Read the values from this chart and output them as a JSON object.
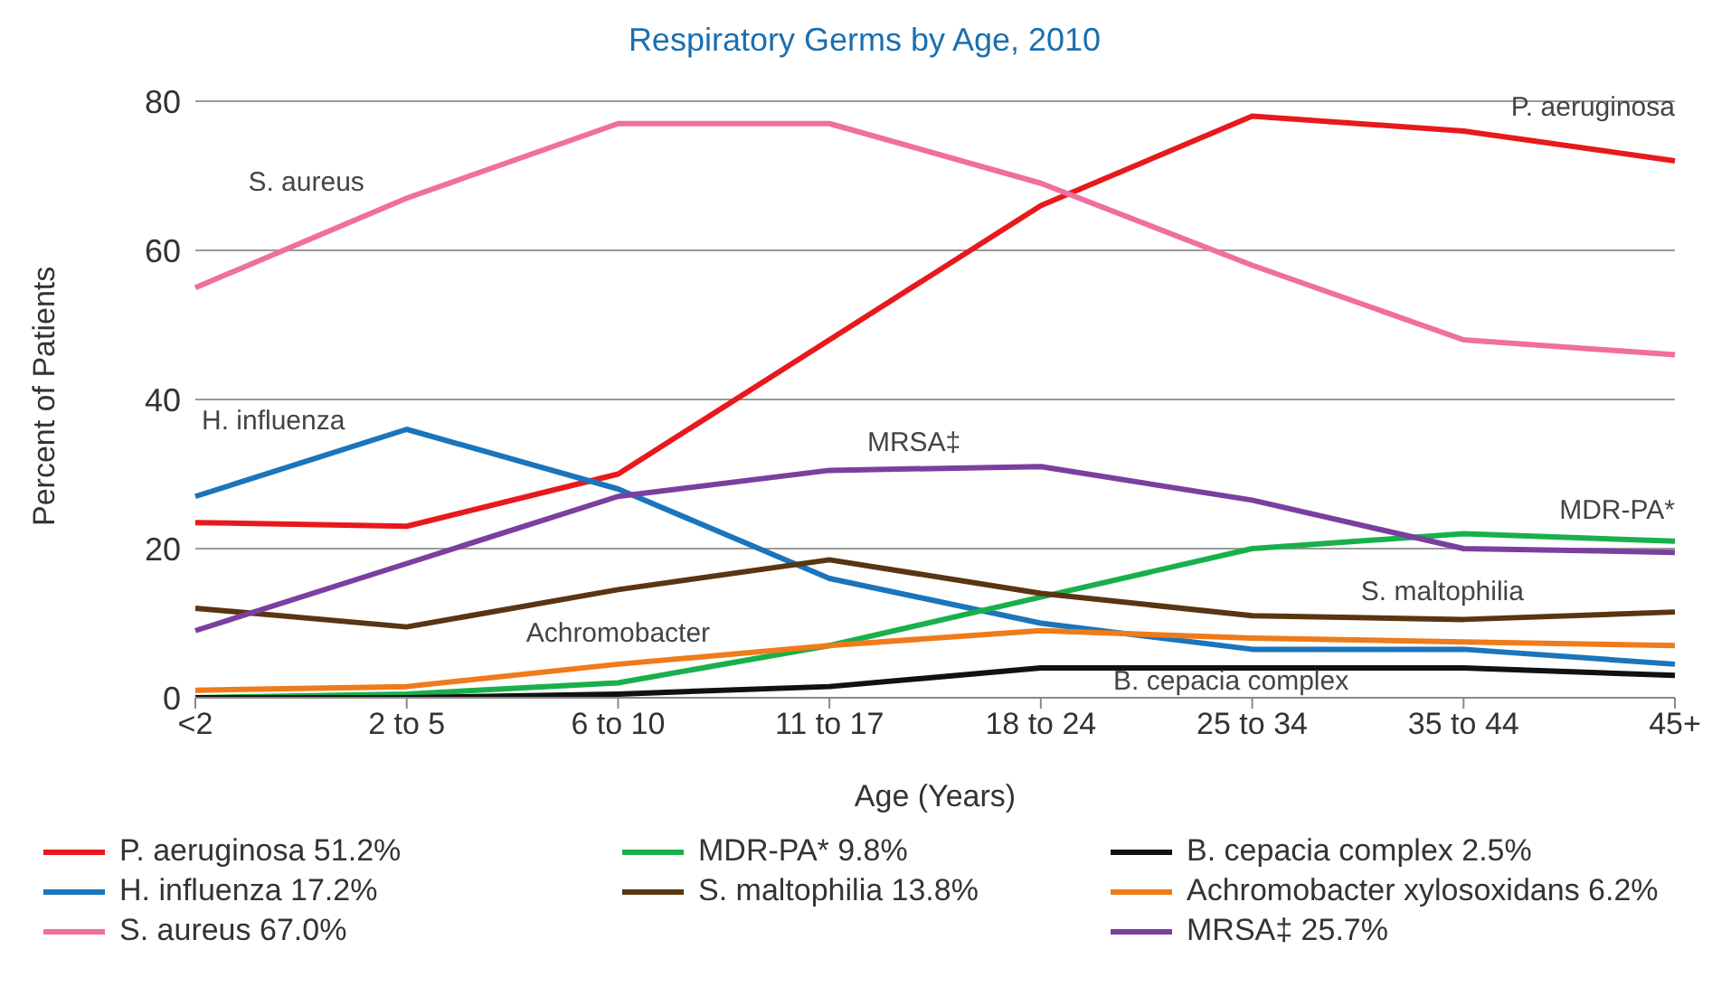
{
  "chart_data": {
    "type": "line",
    "title": "Respiratory Germs by Age, 2010",
    "xlabel": "Age (Years)",
    "ylabel": "Percent of Patients",
    "categories": [
      "<2",
      "2 to 5",
      "6 to 10",
      "11 to 17",
      "18 to 24",
      "25 to 34",
      "35 to 44",
      "45+"
    ],
    "ylim": [
      0,
      80
    ],
    "yticks": [
      0,
      20,
      40,
      60,
      80
    ],
    "grid": "y",
    "legend": "bottom",
    "marker": "none",
    "line_style": "solid",
    "series": [
      {
        "name": "P. aeruginosa 51.2%",
        "color": "#e8191c",
        "values": [
          23.5,
          23,
          30,
          48,
          66,
          78,
          76,
          72
        ]
      },
      {
        "name": "H. influenza 17.2%",
        "color": "#1a75bc",
        "values": [
          27,
          36,
          28,
          16,
          10,
          6.5,
          6.5,
          4.5
        ]
      },
      {
        "name": "S. aureus 67.0%",
        "color": "#f06ea0",
        "values": [
          55,
          67,
          77,
          77,
          69,
          58,
          48,
          46
        ]
      },
      {
        "name": "MDR-PA* 9.8%",
        "color": "#19b04b",
        "values": [
          0,
          0.5,
          2,
          7,
          13.5,
          20,
          22,
          21
        ]
      },
      {
        "name": "S. maltophilia 13.8%",
        "color": "#5a3511",
        "values": [
          12,
          9.5,
          14.5,
          18.5,
          14,
          11,
          10.5,
          11.5
        ]
      },
      {
        "name": "B. cepacia complex 2.5%",
        "color": "#111111",
        "values": [
          0,
          0,
          0.5,
          1.5,
          4,
          4,
          4,
          3
        ]
      },
      {
        "name": "Achromobacter xylosoxidans 6.2%",
        "color": "#ef7b1a",
        "values": [
          1,
          1.5,
          4.5,
          7,
          9,
          8,
          7.5,
          7
        ]
      },
      {
        "name": "MRSA‡ 25.7%",
        "color": "#7b3fa0",
        "values": [
          9,
          18,
          27,
          30.5,
          31,
          26.5,
          20,
          19.5
        ]
      }
    ],
    "annotations": [
      "S. aureus",
      "H. influenza",
      "Achromobacter",
      "MRSA‡",
      "P. aeruginosa",
      "MDR-PA*",
      "S. maltophilia",
      "B. cepacia complex"
    ]
  }
}
